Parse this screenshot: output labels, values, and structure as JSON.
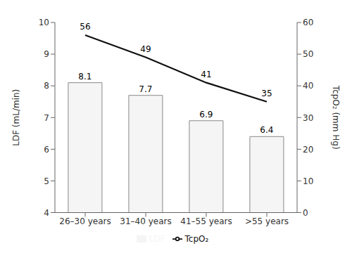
{
  "chart_data": {
    "type": "bar",
    "categories": [
      "26–30 years",
      "31–40 years",
      "41–55 years",
      ">55 years"
    ],
    "series": [
      {
        "name": "LDF",
        "type": "bar",
        "color": "#f5f5f5",
        "values": [
          8.1,
          7.7,
          6.9,
          6.4
        ]
      },
      {
        "name": "TcpO₂",
        "type": "line",
        "axis": "y2",
        "color": "#111111",
        "marker": "none",
        "values": [
          56,
          49,
          41,
          35
        ]
      }
    ],
    "ylabel": "LDF (mL/min)",
    "y2label": "TcpO₂ (mm Hg)",
    "ylim": [
      4,
      10
    ],
    "yticks": [
      4,
      5,
      6,
      7,
      8,
      9,
      10
    ],
    "y2lim": [
      0,
      60
    ],
    "y2ticks": [
      0,
      10,
      20,
      30,
      40,
      50,
      60
    ],
    "data_labels": true,
    "grid": false,
    "legend": "bottom"
  }
}
